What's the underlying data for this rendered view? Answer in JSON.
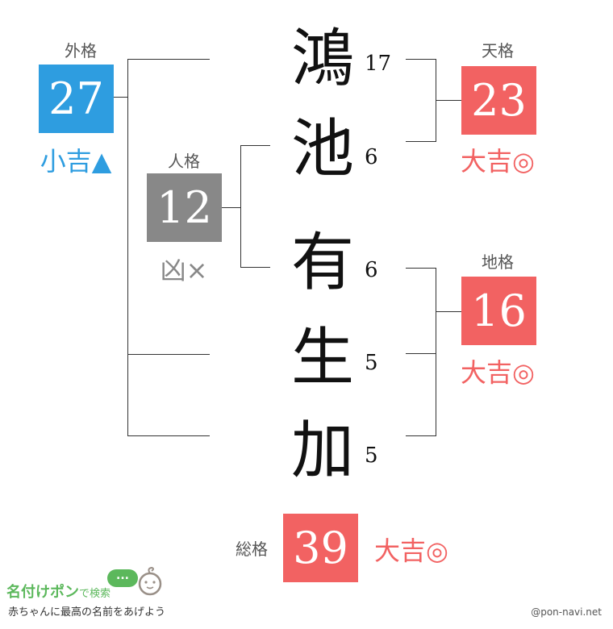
{
  "name_chars": [
    {
      "char": "鴻",
      "strokes": "17"
    },
    {
      "char": "池",
      "strokes": "6"
    },
    {
      "char": "有",
      "strokes": "6"
    },
    {
      "char": "生",
      "strokes": "5"
    },
    {
      "char": "加",
      "strokes": "5"
    }
  ],
  "gaikaku": {
    "label": "外格",
    "value": "27",
    "fortune": "小吉▲",
    "color": "#2e9de0"
  },
  "jinkaku": {
    "label": "人格",
    "value": "12",
    "fortune": "凶×",
    "color": "#888888"
  },
  "tenkaku": {
    "label": "天格",
    "value": "23",
    "fortune": "大吉◎",
    "color": "#f26262"
  },
  "chikaku": {
    "label": "地格",
    "value": "16",
    "fortune": "大吉◎",
    "color": "#f26262"
  },
  "soukaku": {
    "label": "総格",
    "value": "39",
    "fortune": "大吉◎",
    "color": "#f26262"
  },
  "logo": {
    "title": "名付けポン",
    "search": "で検索",
    "tagline": "赤ちゃんに最高の名前をあげよう",
    "bubble": "..."
  },
  "credit": "@pon-navi.net"
}
